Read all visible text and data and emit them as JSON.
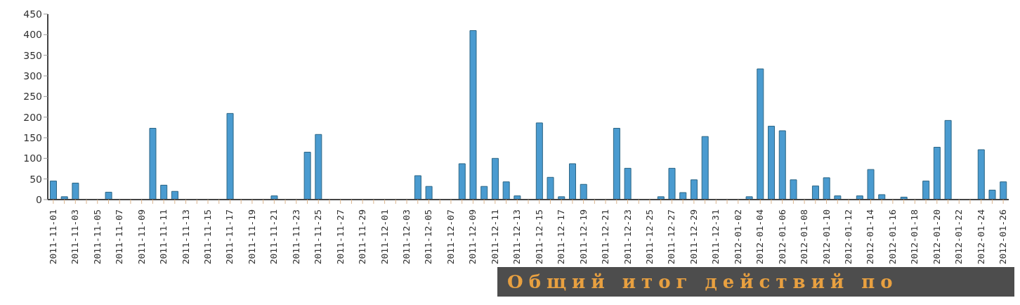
{
  "chart_data": {
    "type": "bar",
    "categories": [
      "2011-11-01",
      null,
      "2011-11-03",
      null,
      "2011-11-05",
      null,
      "2011-11-07",
      null,
      "2011-11-09",
      null,
      "2011-11-11",
      null,
      "2011-11-13",
      null,
      "2011-11-15",
      null,
      "2011-11-17",
      null,
      "2011-11-19",
      null,
      "2011-11-21",
      null,
      "2011-11-23",
      null,
      "2011-11-25",
      null,
      "2011-11-27",
      null,
      "2011-11-29",
      null,
      "2011-12-01",
      null,
      "2011-12-03",
      null,
      "2011-12-05",
      null,
      "2011-12-07",
      null,
      "2011-12-09",
      null,
      "2011-12-11",
      null,
      "2011-12-13",
      null,
      "2011-12-15",
      null,
      "2011-12-17",
      null,
      "2011-12-19",
      null,
      "2011-12-21",
      null,
      "2011-12-23",
      null,
      "2011-12-25",
      null,
      "2011-12-27",
      null,
      "2011-12-29",
      null,
      "2011-12-31",
      null,
      "2012-01-02",
      null,
      "2012-01-04",
      null,
      "2012-01-06",
      null,
      "2012-01-08",
      null,
      "2012-01-10",
      null,
      "2012-01-12",
      null,
      "2012-01-14",
      null,
      "2012-01-16",
      null,
      "2012-01-18",
      null,
      "2012-01-20",
      null,
      "2012-01-22",
      null,
      "2012-01-24",
      null,
      "2012-01-26"
    ],
    "values": [
      45,
      7,
      40,
      0,
      0,
      18,
      0,
      0,
      0,
      173,
      35,
      20,
      0,
      0,
      0,
      0,
      209,
      0,
      0,
      0,
      9,
      0,
      0,
      115,
      158,
      0,
      0,
      0,
      0,
      0,
      0,
      0,
      0,
      58,
      32,
      0,
      0,
      87,
      410,
      32,
      100,
      43,
      9,
      0,
      186,
      54,
      7,
      87,
      37,
      0,
      0,
      173,
      76,
      0,
      0,
      7,
      76,
      17,
      48,
      153,
      0,
      0,
      0,
      7,
      317,
      178,
      167,
      48,
      0,
      33,
      53,
      9,
      0,
      9,
      73,
      12,
      0,
      6,
      0,
      45,
      127,
      192,
      0,
      0,
      121,
      23,
      43
    ],
    "color": "#4a9bd0",
    "ylim": [
      0,
      450
    ],
    "yticks": [
      0,
      50,
      100,
      150,
      200,
      250,
      300,
      350,
      400,
      450
    ],
    "annotations": [
      "Общий итог действий по"
    ]
  }
}
